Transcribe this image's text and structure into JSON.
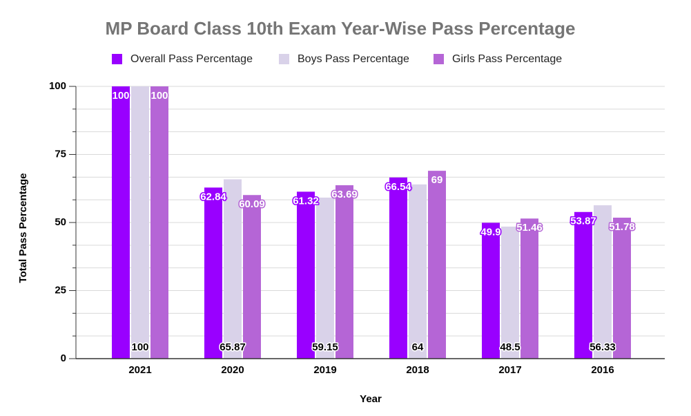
{
  "chart_data": {
    "type": "bar",
    "title": "MP Board Class 10th Exam Year-Wise Pass Percentage",
    "x_label": "Year",
    "y_label": "Total Pass Percentage",
    "categories": [
      "2021",
      "2020",
      "2019",
      "2018",
      "2017",
      "2016"
    ],
    "series": [
      {
        "name": "Overall Pass Percentage",
        "color": "#9900ff",
        "values": [
          100,
          62.84,
          61.32,
          66.54,
          49.9,
          53.87
        ]
      },
      {
        "name": "Boys Pass Percentage",
        "color": "#d9d2e9",
        "values": [
          100,
          65.87,
          59.15,
          64,
          48.5,
          56.33
        ]
      },
      {
        "name": "Girls Pass Percentage",
        "color": "#b565d6",
        "values": [
          100,
          60.09,
          63.69,
          69,
          51.46,
          51.78
        ]
      }
    ],
    "ylim": [
      0,
      100
    ],
    "yticks": [
      0,
      25,
      50,
      75,
      100
    ],
    "grid": true,
    "minor_grid": 3,
    "legend": "top"
  }
}
